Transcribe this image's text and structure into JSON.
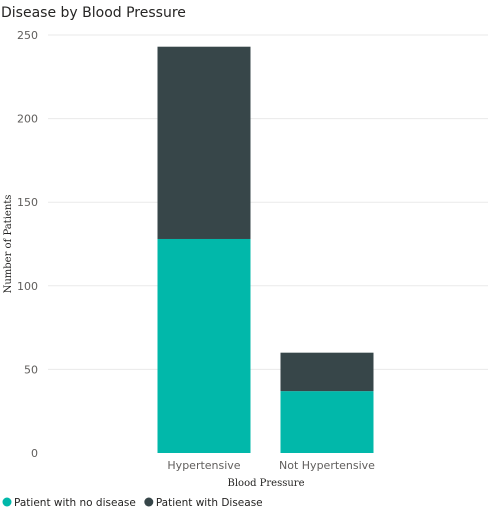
{
  "chart_data": {
    "type": "bar",
    "stacked": true,
    "title": "Disease by Blood Pressure",
    "xlabel": "Blood Pressure",
    "ylabel": "Number of Patients",
    "categories": [
      "Hypertensive",
      "Not Hypertensive"
    ],
    "series": [
      {
        "name": "Patient with no disease",
        "values": [
          128,
          37
        ],
        "color": "#01b8aa"
      },
      {
        "name": "Patient with Disease",
        "values": [
          115,
          23
        ],
        "color": "#374649"
      }
    ],
    "ylim": [
      0,
      250
    ],
    "yticks": [
      0,
      50,
      100,
      150,
      200,
      250
    ],
    "grid": true,
    "legend_position": "bottom-left"
  }
}
